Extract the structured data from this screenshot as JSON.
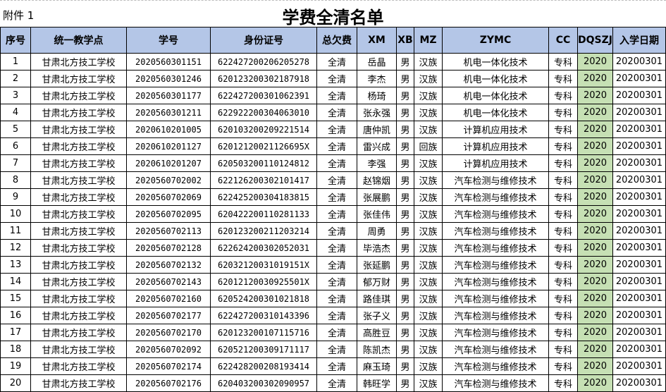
{
  "header": {
    "attachment_label": "附件 1",
    "title": "学费全清名单"
  },
  "colors": {
    "header_bg": "#b4c6e7",
    "highlight_column_bg": "#c6e0b4"
  },
  "table": {
    "columns": [
      "序号",
      "统一教学点",
      "学号",
      "身份证号",
      "总欠费",
      "XM",
      "XB",
      "MZ",
      "ZYMC",
      "CC",
      "DQSZJ",
      "入学日期"
    ],
    "rows": [
      [
        "1",
        "甘肃北方技工学校",
        "2020560301151",
        "622427200206205278",
        "全清",
        "岳晶",
        "男",
        "汉族",
        "机电一体化技术",
        "专科",
        "2020",
        "20200301"
      ],
      [
        "2",
        "甘肃北方技工学校",
        "2020560301246",
        "620123200302187918",
        "全清",
        "李杰",
        "男",
        "汉族",
        "机电一体化技术",
        "专科",
        "2020",
        "20200301"
      ],
      [
        "3",
        "甘肃北方技工学校",
        "2020560301177",
        "622427200301062391",
        "全清",
        "杨琦",
        "男",
        "汉族",
        "机电一体化技术",
        "专科",
        "2020",
        "20200301"
      ],
      [
        "4",
        "甘肃北方技工学校",
        "2020560301211",
        "622922200304063010",
        "全清",
        "张永强",
        "男",
        "汉族",
        "机电一体化技术",
        "专科",
        "2020",
        "20200301"
      ],
      [
        "5",
        "甘肃北方技工学校",
        "2020610201005",
        "620103200209221514",
        "全清",
        "唐仲凯",
        "男",
        "汉族",
        "计算机应用技术",
        "专科",
        "2020",
        "20200301"
      ],
      [
        "6",
        "甘肃北方技工学校",
        "2020610201127",
        "62012120021126695X",
        "全清",
        "雷兴成",
        "男",
        "回族",
        "计算机应用技术",
        "专科",
        "2020",
        "20200301"
      ],
      [
        "7",
        "甘肃北方技工学校",
        "2020610201207",
        "620503200110124812",
        "全清",
        "李强",
        "男",
        "汉族",
        "计算机应用技术",
        "专科",
        "2020",
        "20200301"
      ],
      [
        "8",
        "甘肃北方技工学校",
        "2020560702002",
        "622126200302101417",
        "全清",
        "赵锦烟",
        "男",
        "汉族",
        "汽车检测与维修技术",
        "专科",
        "2020",
        "20200301"
      ],
      [
        "9",
        "甘肃北方技工学校",
        "2020560702069",
        "622425200304183815",
        "全清",
        "张展鹏",
        "男",
        "汉族",
        "汽车检测与维修技术",
        "专科",
        "2020",
        "20200301"
      ],
      [
        "10",
        "甘肃北方技工学校",
        "2020560702095",
        "620422200110281133",
        "全清",
        "张佳伟",
        "男",
        "汉族",
        "汽车检测与维修技术",
        "专科",
        "2020",
        "20200301"
      ],
      [
        "11",
        "甘肃北方技工学校",
        "2020560702113",
        "620123200211203214",
        "全清",
        "周勇",
        "男",
        "汉族",
        "汽车检测与维修技术",
        "专科",
        "2020",
        "20200301"
      ],
      [
        "12",
        "甘肃北方技工学校",
        "2020560702128",
        "622624200302052031",
        "全清",
        "毕浩杰",
        "男",
        "汉族",
        "汽车检测与维修技术",
        "专科",
        "2020",
        "20200301"
      ],
      [
        "13",
        "甘肃北方技工学校",
        "2020560702132",
        "62032120031019151X",
        "全清",
        "张延鹏",
        "男",
        "汉族",
        "汽车检测与维修技术",
        "专科",
        "2020",
        "20200301"
      ],
      [
        "14",
        "甘肃北方技工学校",
        "2020560702143",
        "62012120030925501X",
        "全清",
        "郁万财",
        "男",
        "汉族",
        "汽车检测与维修技术",
        "专科",
        "2020",
        "20200301"
      ],
      [
        "15",
        "甘肃北方技工学校",
        "2020560702160",
        "620524200301021818",
        "全清",
        "路佳琪",
        "男",
        "汉族",
        "汽车检测与维修技术",
        "专科",
        "2020",
        "20200301"
      ],
      [
        "16",
        "甘肃北方技工学校",
        "2020560702177",
        "622427200310143396",
        "全清",
        "张子义",
        "男",
        "汉族",
        "汽车检测与维修技术",
        "专科",
        "2020",
        "20200301"
      ],
      [
        "17",
        "甘肃北方技工学校",
        "2020560702170",
        "620123200107115716",
        "全清",
        "高胜豆",
        "男",
        "汉族",
        "汽车检测与维修技术",
        "专科",
        "2020",
        "20200301"
      ],
      [
        "18",
        "甘肃北方技工学校",
        "2020560702092",
        "620521200309171117",
        "全清",
        "陈凯杰",
        "男",
        "汉族",
        "汽车检测与维修技术",
        "专科",
        "2020",
        "20200301"
      ],
      [
        "19",
        "甘肃北方技工学校",
        "2020560702174",
        "622428200208193414",
        "全清",
        "麻玉琦",
        "男",
        "汉族",
        "汽车检测与维修技术",
        "专科",
        "2020",
        "20200301"
      ],
      [
        "20",
        "甘肃北方技工学校",
        "2020560702176",
        "620403200302090957",
        "全清",
        "韩旺学",
        "男",
        "汉族",
        "汽车检测与维修技术",
        "专科",
        "2020",
        "20200301"
      ]
    ]
  }
}
